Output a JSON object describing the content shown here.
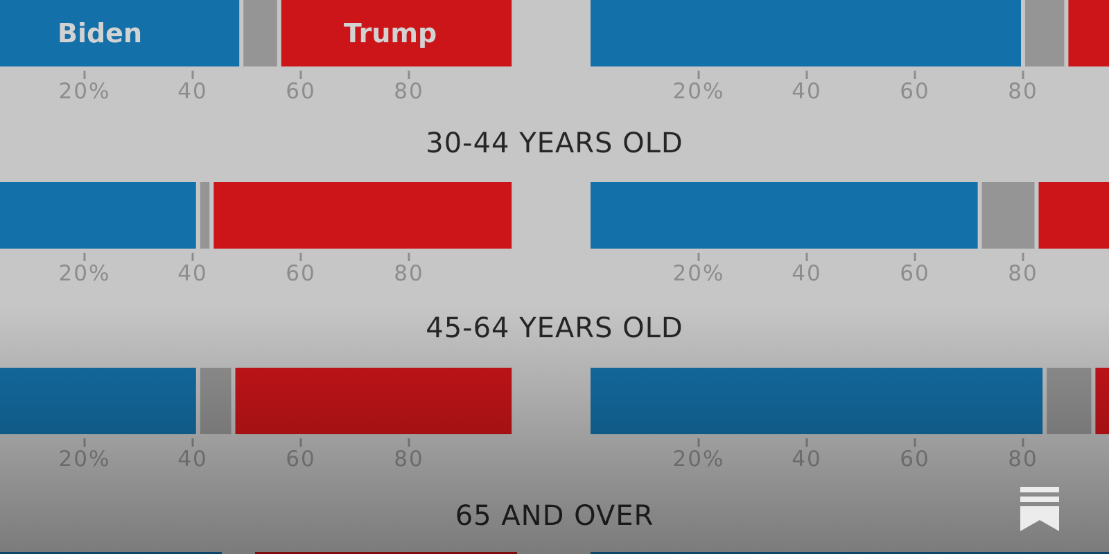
{
  "colors": {
    "biden": "#1470a8",
    "trump": "#cc1519",
    "other": "#959595",
    "background": "#c6c6c6",
    "tick": "#8d8d8d",
    "title": "#262626"
  },
  "chart_data": {
    "type": "bar",
    "stacked": true,
    "orientation": "horizontal",
    "legend": [
      {
        "name": "Biden",
        "color": "#1470a8"
      },
      {
        "name": "Trump",
        "color": "#cc1519"
      }
    ],
    "x_ticks": [
      {
        "value": 20,
        "label": "20%"
      },
      {
        "value": 40,
        "label": "40"
      },
      {
        "value": 60,
        "label": "60"
      },
      {
        "value": 80,
        "label": "80"
      }
    ],
    "xlim": [
      0,
      100
    ],
    "groups": [
      {
        "title": "",
        "panels": [
          {
            "biden": 49,
            "other": 7,
            "trump": 43
          },
          {
            "biden": 80,
            "other": 8,
            "trump": 12
          }
        ]
      },
      {
        "title": "30-44 YEARS OLD",
        "panels": [
          {
            "biden": 41,
            "other": 2.5,
            "trump": 55.5
          },
          {
            "biden": 72,
            "other": 10.5,
            "trump": 17.5
          }
        ]
      },
      {
        "title": "45-64 YEARS OLD",
        "panels": [
          {
            "biden": 41,
            "other": 6.5,
            "trump": 51.5
          },
          {
            "biden": 84,
            "other": 9,
            "trump": 7
          }
        ]
      },
      {
        "title": "65 AND OVER",
        "panels": []
      }
    ]
  }
}
